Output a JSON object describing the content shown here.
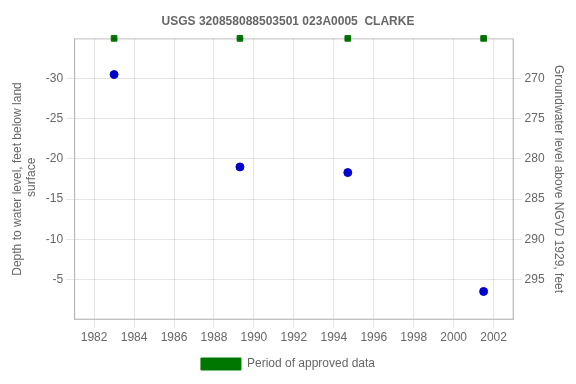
{
  "chart_data": {
    "type": "scatter",
    "title": "USGS 320858088503501 023A0005  CLARKE",
    "series": [
      {
        "color": "#0000cc",
        "marker": "circle",
        "x": [
          1983.0,
          1989.3,
          1994.7,
          2001.5
        ],
        "values": [
          -30.5,
          -19.0,
          -18.3,
          -3.5
        ]
      },
      {
        "name": "Period of approved data",
        "color": "#007700",
        "marker": "square",
        "x": [
          1983.0,
          1989.3,
          1994.7,
          2001.5
        ],
        "values": [
          -35,
          -35,
          -35,
          -35
        ]
      }
    ],
    "xlim": [
      1981,
      2003
    ],
    "xticks": [
      1982,
      1984,
      1986,
      1988,
      1990,
      1992,
      1994,
      1996,
      1998,
      2000,
      2002
    ],
    "ylim": [
      0,
      -35
    ],
    "yticks": [
      -5,
      -10,
      -15,
      -20,
      -25,
      -30
    ],
    "y2lim": [
      300,
      265
    ],
    "y2ticks": [
      295,
      290,
      285,
      280,
      275,
      270
    ],
    "ylabel": "Depth to water level, feet below land\n surface",
    "y2label": "Groundwater level above NGVD 1929, feet",
    "grid": true,
    "legend": "bottom"
  }
}
